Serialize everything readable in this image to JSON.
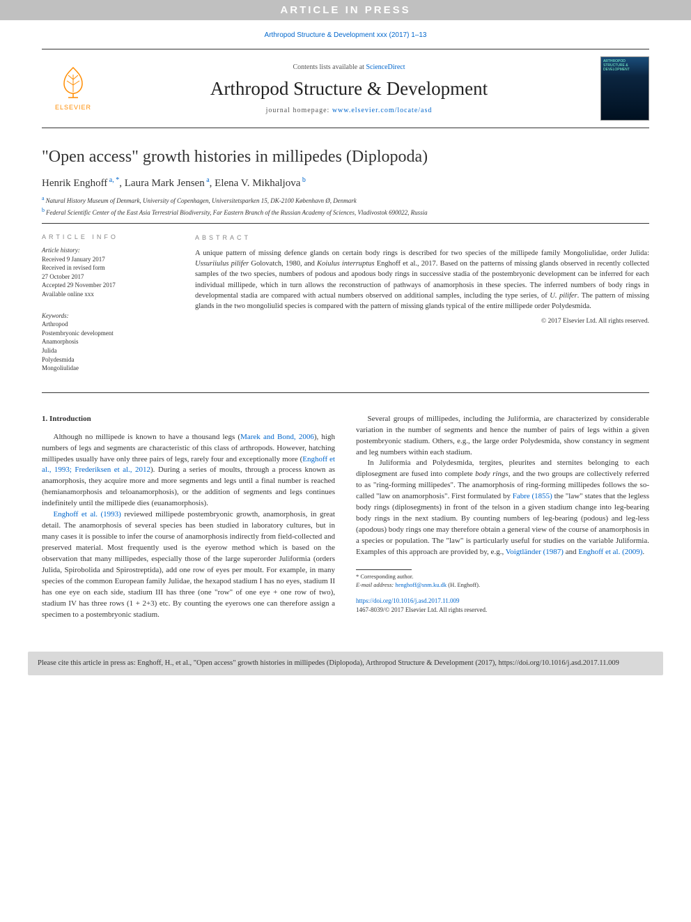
{
  "banner": {
    "text": "ARTICLE IN PRESS"
  },
  "citation_top": "Arthropod Structure & Development xxx (2017) 1–13",
  "masthead": {
    "elsevier_label": "ELSEVIER",
    "contents_prefix": "Contents lists available at ",
    "contents_link": "ScienceDirect",
    "journal_name": "Arthropod Structure & Development",
    "homepage_prefix": "journal homepage: ",
    "homepage_link": "www.elsevier.com/locate/asd",
    "cover_text": "ARTHROPOD\nSTRUCTURE &\nDEVELOPMENT",
    "logo_color": "#ff8c00",
    "header_link_color": "#0066cc"
  },
  "title": "\"Open access\" growth histories in millipedes (Diplopoda)",
  "authors_html": "Henrik Enghoff|a, *|, Laura Mark Jensen|a|, Elena V. Mikhaljova|b|",
  "affiliations": [
    {
      "marker": "a",
      "text": "Natural History Museum of Denmark, University of Copenhagen, Universitetsparken 15, DK-2100 København Ø, Denmark"
    },
    {
      "marker": "b",
      "text": "Federal Scientific Center of the East Asia Terrestrial Biodiversity, Far Eastern Branch of the Russian Academy of Sciences, Vladivostok 690022, Russia"
    }
  ],
  "info": {
    "heading": "ARTICLE INFO",
    "history_label": "Article history:",
    "history": [
      "Received 9 January 2017",
      "Received in revised form",
      "27 October 2017",
      "Accepted 29 November 2017",
      "Available online xxx"
    ],
    "keywords_label": "Keywords:",
    "keywords": [
      "Arthropod",
      "Postembryonic development",
      "Anamorphosis",
      "Julida",
      "Polydesmida",
      "Mongoliulidae"
    ]
  },
  "abstract": {
    "heading": "ABSTRACT",
    "text": "A unique pattern of missing defence glands on certain body rings is described for two species of the millipede family Mongoliulidae, order Julida: <i>Ussuriiulus pilifer</i> Golovatch, 1980, and <i>Koiulus interruptus</i> Enghoff et al., 2017. Based on the patterns of missing glands observed in recently collected samples of the two species, numbers of podous and apodous body rings in successive stadia of the postembryonic development can be inferred for each individual millipede, which in turn allows the reconstruction of pathways of anamorphosis in these species. The inferred numbers of body rings in developmental stadia are compared with actual numbers observed on additional samples, including the type series, of <i>U. pilifer</i>. The pattern of missing glands in the two mongoliulid species is compared with the pattern of missing glands typical of the entire millipede order Polydesmida.",
    "copyright": "© 2017 Elsevier Ltd. All rights reserved."
  },
  "body": {
    "section_number": "1.",
    "section_title": "Introduction",
    "paragraphs": [
      "Although no millipede is known to have a thousand legs (<a class=\"cite\">Marek and Bond, 2006</a>), high numbers of legs and segments are characteristic of this class of arthropods. However, hatching millipedes usually have only three pairs of legs, rarely four and exceptionally more (<a class=\"cite\">Enghoff et al., 1993; Frederiksen et al., 2012</a>). During a series of moults, through a process known as anamorphosis, they acquire more and more segments and legs until a final number is reached (hemianamorphosis and teloanamorphosis), or the addition of segments and legs continues indefinitely until the millipede dies (euanamorphosis).",
      "<a class=\"cite\">Enghoff et al. (1993)</a> reviewed millipede postembryonic growth, anamorphosis, in great detail. The anamorphosis of several species has been studied in laboratory cultures, but in many cases it is possible to infer the course of anamorphosis indirectly from field-collected and preserved material. Most frequently used is the eyerow method which is based on the observation that many millipedes, especially those of the large superorder Juliformia (orders Julida, Spirobolida and Spirostreptida), add one row of eyes per moult. For example, in many species of the common European family Julidae, the hexapod stadium I has no eyes, stadium II has one eye on each side, stadium III has three (one \"row\" of one eye + one row of two), stadium IV has three rows (1 + 2+3) etc. By counting the eyerows one can therefore assign a specimen to a postembryonic stadium.",
      "Several groups of millipedes, including the Juliformia, are characterized by considerable variation in the number of segments and hence the number of pairs of legs within a given postembryonic stadium. Others, e.g., the large order Polydesmida, show constancy in segment and leg numbers within each stadium.",
      "In Juliformia and Polydesmida, tergites, pleurites and sternites belonging to each diplosegment are fused into complete <span class=\"ital\">body rings</span>, and the two groups are collectively referred to as \"ring-forming millipedes\". The anamorphosis of ring-forming millipedes follows the so-called \"law on anamorphosis\". First formulated by <a class=\"cite\">Fabre (1855)</a> the \"law\" states that the legless body rings (diplosegments) in front of the telson in a given stadium change into leg-bearing body rings in the next stadium. By counting numbers of leg-bearing (podous) and leg-less (apodous) body rings one may therefore obtain a general view of the course of anamorphosis in a species or population. The \"law\" is particularly useful for studies on the variable Juliformia. Examples of this approach are provided by, e.g., <a class=\"cite\">Voigtländer (1987)</a> and <a class=\"cite\">Enghoff et al. (2009)</a>."
    ]
  },
  "footnotes": {
    "corr": "* Corresponding author.",
    "email_label": "E-mail address:",
    "email": "henghoff@snm.ku.dk",
    "email_who": "(H. Enghoff)."
  },
  "doi": {
    "link": "https://doi.org/10.1016/j.asd.2017.11.009",
    "issn_line": "1467-8039/© 2017 Elsevier Ltd. All rights reserved."
  },
  "cite_footer": "Please cite this article in press as: Enghoff, H., et al., \"Open access\" growth histories in millipedes (Diplopoda), Arthropod Structure & Development (2017), https://doi.org/10.1016/j.asd.2017.11.009",
  "colors": {
    "link": "#0066cc",
    "banner_bg": "#c0c0c0",
    "footer_bg": "#d9d9d9",
    "elsevier_orange": "#ff8c00"
  },
  "fonts": {
    "body": "Georgia, 'Times New Roman', serif",
    "sans": "Arial, sans-serif",
    "title_size_pt": 24,
    "journal_size_pt": 27,
    "body_size_pt": 11,
    "abstract_size_pt": 10.5,
    "info_size_pt": 9
  }
}
